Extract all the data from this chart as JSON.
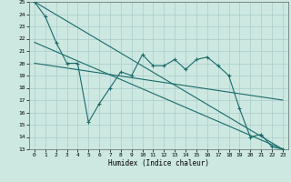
{
  "xlabel": "Humidex (Indice chaleur)",
  "bg_color": "#cce8e0",
  "grid_color": "#aacccc",
  "line_color": "#1a6b6b",
  "xlim": [
    -0.5,
    23.5
  ],
  "ylim": [
    13,
    25
  ],
  "xtick_labels": [
    "0",
    "1",
    "2",
    "3",
    "4",
    "5",
    "6",
    "7",
    "8",
    "9",
    "10",
    "11",
    "12",
    "13",
    "14",
    "15",
    "16",
    "17",
    "18",
    "19",
    "20",
    "21",
    "22",
    "23"
  ],
  "xtick_vals": [
    0,
    1,
    2,
    3,
    4,
    5,
    6,
    7,
    8,
    9,
    10,
    11,
    12,
    13,
    14,
    15,
    16,
    17,
    18,
    19,
    20,
    21,
    22,
    23
  ],
  "ytick_vals": [
    13,
    14,
    15,
    16,
    17,
    18,
    19,
    20,
    21,
    22,
    23,
    24,
    25
  ],
  "line1_x": [
    0,
    1,
    2,
    3,
    4,
    5,
    6,
    7,
    8,
    9,
    10,
    11,
    12,
    13,
    14,
    15,
    16,
    17,
    18,
    19,
    20,
    21,
    22,
    23
  ],
  "line1_y": [
    25.0,
    23.8,
    21.7,
    20.0,
    20.0,
    15.2,
    16.7,
    18.0,
    19.3,
    19.0,
    20.7,
    19.8,
    19.8,
    20.3,
    19.5,
    20.3,
    20.5,
    19.8,
    19.0,
    16.3,
    14.0,
    14.2,
    13.2,
    13.0
  ],
  "line2_x": [
    0,
    23
  ],
  "line2_y": [
    25.0,
    13.0
  ],
  "line3_x": [
    0,
    23
  ],
  "line3_y": [
    21.7,
    13.0
  ],
  "line4_x": [
    0,
    23
  ],
  "line4_y": [
    20.0,
    17.0
  ]
}
